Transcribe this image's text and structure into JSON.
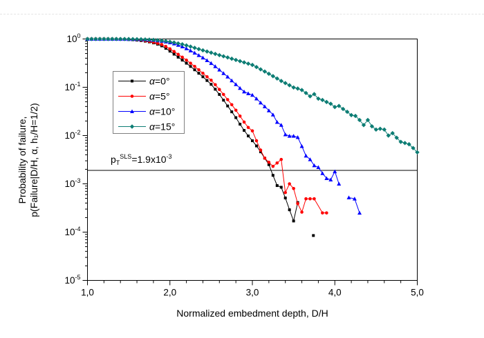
{
  "chart_data": {
    "type": "line",
    "log_y": true,
    "title": "",
    "xlabel": "Normalized embedment depth, D/H",
    "ylabel_line1": "Probability of failure,",
    "ylabel_line2": "p(Failure|D/H, α, h₁/H=1/2)",
    "x_axis": {
      "min": 1.0,
      "max": 5.0,
      "major_values": [
        1,
        2,
        3,
        4,
        5
      ],
      "major_labels": [
        "1,0",
        "2,0",
        "3,0",
        "4,0",
        "5,0"
      ],
      "minor_step": 0.2
    },
    "y_axis": {
      "base": "10",
      "exponents": [
        0,
        -1,
        -2,
        -3,
        -4,
        -5
      ]
    },
    "threshold": {
      "value": 0.0019,
      "prefix": "p",
      "sub": "T",
      "sup": "SLS",
      "suffix": "=1.9x10",
      "exp": "-3",
      "color": "#000000"
    },
    "legend": {
      "position": "upper-left-inside"
    },
    "series": [
      {
        "name": "α=0°",
        "color": "#000000",
        "marker": "square",
        "segments": [
          [
            [
              1.0,
              1.0
            ],
            [
              1.05,
              1.0
            ],
            [
              1.1,
              1.0
            ],
            [
              1.15,
              1.0
            ],
            [
              1.2,
              0.999
            ],
            [
              1.25,
              0.998
            ],
            [
              1.3,
              0.996
            ],
            [
              1.35,
              0.993
            ],
            [
              1.4,
              0.99
            ],
            [
              1.45,
              0.985
            ],
            [
              1.5,
              0.975
            ],
            [
              1.55,
              0.962
            ],
            [
              1.6,
              0.945
            ],
            [
              1.65,
              0.923
            ],
            [
              1.7,
              0.9
            ],
            [
              1.75,
              0.87
            ],
            [
              1.8,
              0.83
            ],
            [
              1.85,
              0.78
            ],
            [
              1.9,
              0.72
            ],
            [
              1.95,
              0.64
            ],
            [
              2.0,
              0.56
            ],
            [
              2.05,
              0.485
            ],
            [
              2.1,
              0.42
            ],
            [
              2.15,
              0.365
            ],
            [
              2.2,
              0.315
            ],
            [
              2.25,
              0.27
            ],
            [
              2.3,
              0.23
            ],
            [
              2.35,
              0.195
            ],
            [
              2.4,
              0.165
            ],
            [
              2.45,
              0.138
            ],
            [
              2.5,
              0.115
            ],
            [
              2.55,
              0.091
            ],
            [
              2.6,
              0.071
            ],
            [
              2.65,
              0.054
            ],
            [
              2.7,
              0.041
            ],
            [
              2.75,
              0.031
            ],
            [
              2.8,
              0.0235
            ],
            [
              2.85,
              0.0172
            ],
            [
              2.9,
              0.0128
            ],
            [
              2.95,
              0.0098
            ],
            [
              3.0,
              0.0078
            ],
            [
              3.05,
              0.0061
            ],
            [
              3.1,
              0.0046
            ],
            [
              3.15,
              0.0034
            ],
            [
              3.2,
              0.0025
            ],
            [
              3.25,
              0.0015
            ],
            [
              3.3,
              0.00092
            ],
            [
              3.35,
              0.00085
            ],
            [
              3.4,
              0.00051
            ],
            [
              3.45,
              0.00029
            ],
            [
              3.5,
              0.00017
            ],
            [
              3.55,
              0.00041
            ]
          ]
        ],
        "isolated_points": [
          [
            3.74,
            8.5e-05
          ]
        ]
      },
      {
        "name": "α=5°",
        "color": "#ff0000",
        "marker": "circle",
        "segments": [
          [
            [
              1.0,
              1.0
            ],
            [
              1.05,
              1.0
            ],
            [
              1.1,
              1.0
            ],
            [
              1.15,
              1.0
            ],
            [
              1.2,
              1.0
            ],
            [
              1.25,
              0.999
            ],
            [
              1.3,
              0.997
            ],
            [
              1.35,
              0.995
            ],
            [
              1.4,
              0.992
            ],
            [
              1.45,
              0.988
            ],
            [
              1.5,
              0.982
            ],
            [
              1.55,
              0.972
            ],
            [
              1.6,
              0.958
            ],
            [
              1.65,
              0.94
            ],
            [
              1.7,
              0.918
            ],
            [
              1.75,
              0.89
            ],
            [
              1.8,
              0.856
            ],
            [
              1.85,
              0.815
            ],
            [
              1.9,
              0.77
            ],
            [
              1.95,
              0.7
            ],
            [
              2.0,
              0.625
            ],
            [
              2.05,
              0.55
            ],
            [
              2.1,
              0.48
            ],
            [
              2.15,
              0.42
            ],
            [
              2.2,
              0.365
            ],
            [
              2.25,
              0.315
            ],
            [
              2.3,
              0.27
            ],
            [
              2.35,
              0.23
            ],
            [
              2.4,
              0.195
            ],
            [
              2.45,
              0.165
            ],
            [
              2.5,
              0.14
            ],
            [
              2.55,
              0.113
            ],
            [
              2.6,
              0.09
            ],
            [
              2.65,
              0.071
            ],
            [
              2.7,
              0.0555
            ],
            [
              2.75,
              0.0435
            ],
            [
              2.8,
              0.0335
            ],
            [
              2.85,
              0.0253
            ],
            [
              2.9,
              0.019
            ],
            [
              2.95,
              0.0147
            ],
            [
              3.0,
              0.0125
            ],
            [
              3.05,
              0.0078
            ],
            [
              3.1,
              0.005
            ],
            [
              3.15,
              0.0034
            ],
            [
              3.2,
              0.0028
            ],
            [
              3.25,
              0.0023
            ],
            [
              3.3,
              0.0027
            ],
            [
              3.35,
              0.0032
            ],
            [
              3.4,
              0.00066
            ],
            [
              3.45,
              0.001
            ],
            [
              3.5,
              0.0008
            ],
            [
              3.55,
              0.00039
            ],
            [
              3.6,
              0.00026
            ],
            [
              3.65,
              0.00049
            ],
            [
              3.7,
              0.00049
            ],
            [
              3.75,
              0.00049
            ],
            [
              3.85,
              0.00025
            ],
            [
              3.9,
              0.00025
            ]
          ]
        ],
        "isolated_points": []
      },
      {
        "name": "α=10°",
        "color": "#0000ff",
        "marker": "triangle",
        "segments": [
          [
            [
              1.0,
              1.0
            ],
            [
              1.05,
              1.0
            ],
            [
              1.1,
              1.0
            ],
            [
              1.15,
              1.0
            ],
            [
              1.2,
              1.0
            ],
            [
              1.25,
              1.0
            ],
            [
              1.3,
              0.999
            ],
            [
              1.35,
              0.998
            ],
            [
              1.4,
              0.997
            ],
            [
              1.45,
              0.995
            ],
            [
              1.5,
              0.993
            ],
            [
              1.55,
              0.99
            ],
            [
              1.6,
              0.986
            ],
            [
              1.65,
              0.98
            ],
            [
              1.7,
              0.972
            ],
            [
              1.75,
              0.961
            ],
            [
              1.8,
              0.947
            ],
            [
              1.85,
              0.928
            ],
            [
              1.9,
              0.905
            ],
            [
              1.95,
              0.878
            ],
            [
              2.0,
              0.845
            ],
            [
              2.05,
              0.8
            ],
            [
              2.1,
              0.75
            ],
            [
              2.15,
              0.695
            ],
            [
              2.2,
              0.635
            ],
            [
              2.25,
              0.575
            ],
            [
              2.3,
              0.515
            ],
            [
              2.35,
              0.46
            ],
            [
              2.4,
              0.41
            ],
            [
              2.45,
              0.36
            ],
            [
              2.5,
              0.315
            ],
            [
              2.55,
              0.27
            ],
            [
              2.6,
              0.23
            ],
            [
              2.65,
              0.195
            ],
            [
              2.7,
              0.165
            ],
            [
              2.75,
              0.138
            ],
            [
              2.8,
              0.115
            ],
            [
              2.85,
              0.096
            ],
            [
              2.9,
              0.081
            ],
            [
              2.95,
              0.0745
            ],
            [
              3.0,
              0.069
            ],
            [
              3.05,
              0.058
            ],
            [
              3.1,
              0.048
            ],
            [
              3.15,
              0.04
            ],
            [
              3.2,
              0.033
            ],
            [
              3.25,
              0.027
            ],
            [
              3.3,
              0.019
            ],
            [
              3.35,
              0.0165
            ],
            [
              3.4,
              0.0105
            ],
            [
              3.45,
              0.0098
            ],
            [
              3.5,
              0.0098
            ],
            [
              3.55,
              0.0092
            ],
            [
              3.6,
              0.006
            ],
            [
              3.65,
              0.0038
            ],
            [
              3.7,
              0.0032
            ],
            [
              3.75,
              0.0024
            ],
            [
              3.8,
              0.0022
            ],
            [
              3.85,
              0.00165
            ],
            [
              3.9,
              0.0013
            ],
            [
              3.95,
              0.00122
            ],
            [
              4.0,
              0.0018
            ],
            [
              4.05,
              0.001
            ]
          ],
          [
            [
              4.17,
              0.00052
            ],
            [
              4.24,
              0.00049
            ],
            [
              4.3,
              0.00025
            ]
          ]
        ],
        "isolated_points": []
      },
      {
        "name": "α=15°",
        "color": "#0d7d74",
        "marker": "diamond",
        "segments": [
          [
            [
              1.0,
              1.0
            ],
            [
              1.05,
              1.0
            ],
            [
              1.1,
              1.0
            ],
            [
              1.15,
              1.0
            ],
            [
              1.2,
              1.0
            ],
            [
              1.25,
              1.0
            ],
            [
              1.3,
              1.0
            ],
            [
              1.35,
              1.0
            ],
            [
              1.4,
              0.999
            ],
            [
              1.45,
              0.998
            ],
            [
              1.5,
              0.996
            ],
            [
              1.55,
              0.993
            ],
            [
              1.6,
              0.989
            ],
            [
              1.65,
              0.984
            ],
            [
              1.7,
              0.977
            ],
            [
              1.75,
              0.968
            ],
            [
              1.8,
              0.956
            ],
            [
              1.85,
              0.941
            ],
            [
              1.9,
              0.923
            ],
            [
              1.95,
              0.9
            ],
            [
              2.0,
              0.875
            ],
            [
              2.05,
              0.845
            ],
            [
              2.1,
              0.81
            ],
            [
              2.15,
              0.775
            ],
            [
              2.2,
              0.735
            ],
            [
              2.25,
              0.695
            ],
            [
              2.3,
              0.655
            ],
            [
              2.35,
              0.617
            ],
            [
              2.4,
              0.582
            ],
            [
              2.45,
              0.55
            ],
            [
              2.5,
              0.52
            ],
            [
              2.55,
              0.49
            ],
            [
              2.6,
              0.463
            ],
            [
              2.65,
              0.438
            ],
            [
              2.7,
              0.414
            ],
            [
              2.75,
              0.39
            ],
            [
              2.8,
              0.368
            ],
            [
              2.85,
              0.347
            ],
            [
              2.9,
              0.327
            ],
            [
              2.95,
              0.308
            ],
            [
              3.0,
              0.29
            ],
            [
              3.05,
              0.262
            ],
            [
              3.1,
              0.235
            ],
            [
              3.15,
              0.212
            ],
            [
              3.2,
              0.19
            ],
            [
              3.25,
              0.17
            ],
            [
              3.3,
              0.152
            ],
            [
              3.35,
              0.135
            ],
            [
              3.4,
              0.122
            ],
            [
              3.45,
              0.11
            ],
            [
              3.5,
              0.099
            ],
            [
              3.55,
              0.094
            ],
            [
              3.6,
              0.0875
            ],
            [
              3.65,
              0.076
            ],
            [
              3.7,
              0.065
            ],
            [
              3.75,
              0.072
            ],
            [
              3.8,
              0.058
            ],
            [
              3.85,
              0.0545
            ],
            [
              3.9,
              0.0495
            ],
            [
              3.95,
              0.0455
            ],
            [
              4.0,
              0.039
            ],
            [
              4.05,
              0.041
            ],
            [
              4.1,
              0.0355
            ],
            [
              4.15,
              0.031
            ],
            [
              4.2,
              0.0265
            ],
            [
              4.25,
              0.0255
            ],
            [
              4.3,
              0.021
            ],
            [
              4.35,
              0.0165
            ],
            [
              4.4,
              0.021
            ],
            [
              4.45,
              0.0155
            ],
            [
              4.5,
              0.0133
            ],
            [
              4.55,
              0.0138
            ],
            [
              4.6,
              0.0133
            ],
            [
              4.65,
              0.01
            ],
            [
              4.7,
              0.0112
            ],
            [
              4.75,
              0.009
            ],
            [
              4.8,
              0.0074
            ],
            [
              4.85,
              0.007
            ],
            [
              4.9,
              0.0066
            ],
            [
              4.95,
              0.0055
            ],
            [
              5.0,
              0.0045
            ]
          ]
        ],
        "isolated_points": []
      }
    ]
  }
}
